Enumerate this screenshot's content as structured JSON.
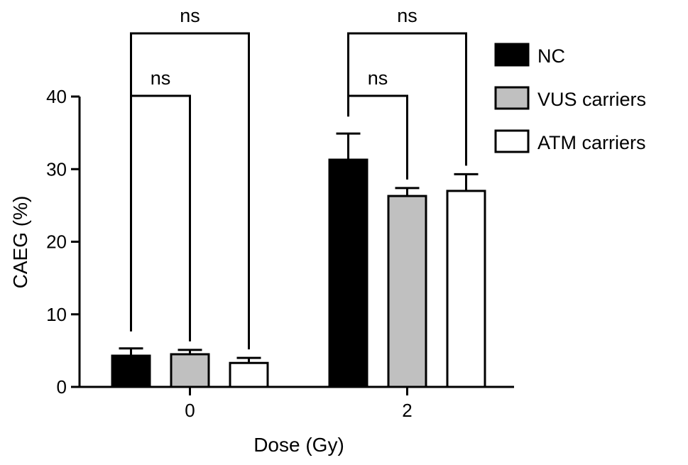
{
  "chart_data": {
    "type": "bar",
    "title": "",
    "xlabel": "Dose (Gy)",
    "ylabel": "CAEG (%)",
    "ylim": [
      0,
      40
    ],
    "yticks": [
      0,
      10,
      20,
      30,
      40
    ],
    "categories": [
      "0",
      "2"
    ],
    "grid": false,
    "legend_position": "top-right",
    "series": [
      {
        "name": "NC",
        "values": [
          4.3,
          31.3
        ],
        "errors": [
          1.0,
          3.6
        ],
        "color": "#000000"
      },
      {
        "name": "VUS carriers",
        "values": [
          4.5,
          26.3
        ],
        "errors": [
          0.6,
          1.1
        ],
        "color": "#c0c0c0"
      },
      {
        "name": "ATM carriers",
        "values": [
          3.3,
          27.0
        ],
        "errors": [
          0.7,
          2.3
        ],
        "color": "#ffffff"
      }
    ],
    "annotations": [
      {
        "label": "ns",
        "category": 0,
        "from_series": 0,
        "to_series": 1,
        "level": 1
      },
      {
        "label": "ns",
        "category": 0,
        "from_series": 0,
        "to_series": 2,
        "level": 2
      },
      {
        "label": "ns",
        "category": 1,
        "from_series": 0,
        "to_series": 1,
        "level": 1
      },
      {
        "label": "ns",
        "category": 1,
        "from_series": 0,
        "to_series": 2,
        "level": 2
      }
    ]
  }
}
